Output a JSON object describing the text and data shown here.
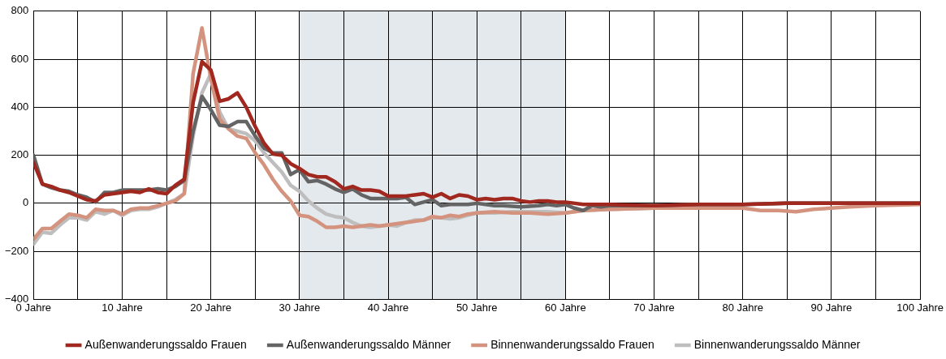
{
  "chart_data": {
    "type": "line",
    "xlim": [
      0,
      100
    ],
    "ylim": [
      -400,
      800
    ],
    "xticks": [
      {
        "value": 0,
        "label": "0 Jahre"
      },
      {
        "value": 5,
        "label": null
      },
      {
        "value": 10,
        "label": "10 Jahre"
      },
      {
        "value": 15,
        "label": null
      },
      {
        "value": 20,
        "label": "20 Jahre"
      },
      {
        "value": 25,
        "label": null
      },
      {
        "value": 30,
        "label": "30 Jahre"
      },
      {
        "value": 35,
        "label": null
      },
      {
        "value": 40,
        "label": "40 Jahre"
      },
      {
        "value": 45,
        "label": null
      },
      {
        "value": 50,
        "label": "50 Jahre"
      },
      {
        "value": 55,
        "label": null
      },
      {
        "value": 60,
        "label": "60 Jahre"
      },
      {
        "value": 65,
        "label": null
      },
      {
        "value": 70,
        "label": "70 Jahre"
      },
      {
        "value": 75,
        "label": null
      },
      {
        "value": 80,
        "label": "80 Jahre"
      },
      {
        "value": 85,
        "label": null
      },
      {
        "value": 90,
        "label": "90 Jahre"
      },
      {
        "value": 95,
        "label": null
      },
      {
        "value": 100,
        "label": "100 Jahre"
      }
    ],
    "yticks": [
      {
        "value": -400,
        "label": "−400"
      },
      {
        "value": -200,
        "label": "−200"
      },
      0,
      200,
      400,
      600,
      800
    ],
    "grid": true,
    "legend": "bottom",
    "marker": "none",
    "line_style": "solid",
    "bands": [
      {
        "axis": "x",
        "from": 30,
        "to": 60,
        "color": "#e4e9ee"
      }
    ],
    "series": [
      {
        "name": "Außenwanderungssaldo Frauen",
        "color": "#a0281e",
        "x": [
          0,
          1,
          2,
          3,
          4,
          5,
          6,
          7,
          8,
          9,
          10,
          11,
          12,
          13,
          14,
          15,
          16,
          17,
          18,
          19,
          20,
          21,
          22,
          23,
          24,
          25,
          26,
          27,
          28,
          29,
          30,
          31,
          32,
          33,
          34,
          35,
          36,
          37,
          38,
          39,
          40,
          41,
          42,
          43,
          44,
          45,
          46,
          47,
          48,
          49,
          50,
          51,
          52,
          53,
          54,
          55,
          56,
          57,
          58,
          59,
          60,
          62,
          65,
          70,
          75,
          80,
          85,
          90,
          95,
          100
        ],
        "values": [
          170,
          80,
          70,
          55,
          45,
          30,
          15,
          10,
          35,
          40,
          45,
          50,
          45,
          60,
          45,
          40,
          75,
          100,
          420,
          590,
          555,
          425,
          435,
          460,
          400,
          320,
          250,
          205,
          200,
          165,
          145,
          120,
          110,
          110,
          90,
          60,
          70,
          55,
          55,
          50,
          30,
          30,
          30,
          35,
          40,
          25,
          40,
          20,
          35,
          30,
          15,
          20,
          15,
          20,
          20,
          10,
          5,
          10,
          10,
          5,
          5,
          -5,
          -5,
          -10,
          -5,
          -5,
          0,
          0,
          0,
          0
        ]
      },
      {
        "name": "Außenwanderungssaldo Männer",
        "color": "#646464",
        "x": [
          0,
          1,
          2,
          3,
          4,
          5,
          6,
          7,
          8,
          9,
          10,
          11,
          12,
          13,
          14,
          15,
          16,
          17,
          18,
          19,
          20,
          21,
          22,
          23,
          24,
          25,
          26,
          27,
          28,
          29,
          30,
          31,
          32,
          33,
          34,
          35,
          36,
          37,
          38,
          39,
          40,
          41,
          42,
          43,
          44,
          45,
          46,
          47,
          48,
          49,
          50,
          51,
          52,
          53,
          55,
          57,
          58,
          59,
          60,
          61,
          62,
          63,
          64,
          65,
          70,
          75,
          80,
          85,
          90,
          95,
          100
        ],
        "values": [
          200,
          80,
          65,
          55,
          50,
          35,
          25,
          5,
          45,
          45,
          55,
          55,
          55,
          55,
          60,
          55,
          70,
          95,
          300,
          445,
          390,
          325,
          320,
          340,
          340,
          280,
          230,
          210,
          210,
          120,
          140,
          90,
          95,
          80,
          60,
          45,
          60,
          35,
          20,
          20,
          20,
          20,
          25,
          -5,
          5,
          15,
          -10,
          -5,
          -5,
          -5,
          0,
          -5,
          -10,
          -10,
          -15,
          -10,
          -5,
          -10,
          -5,
          -20,
          -30,
          -10,
          -15,
          -10,
          -10,
          -5,
          -5,
          0,
          0,
          0,
          0
        ]
      },
      {
        "name": "Binnenwanderungssaldo Frauen",
        "color": "#d4937e",
        "x": [
          0,
          1,
          2,
          3,
          4,
          5,
          6,
          7,
          8,
          9,
          10,
          11,
          12,
          13,
          14,
          15,
          16,
          17,
          18,
          19,
          20,
          21,
          22,
          23,
          24,
          25,
          26,
          27,
          28,
          29,
          30,
          31,
          32,
          33,
          34,
          35,
          36,
          37,
          38,
          39,
          40,
          41,
          42,
          43,
          44,
          45,
          46,
          47,
          48,
          49,
          50,
          52,
          54,
          56,
          58,
          60,
          62,
          65,
          70,
          75,
          80,
          82,
          84,
          86,
          88,
          90,
          92,
          95,
          100
        ],
        "values": [
          -150,
          -105,
          -105,
          -75,
          -45,
          -50,
          -60,
          -25,
          -30,
          -30,
          -45,
          -25,
          -20,
          -20,
          -10,
          0,
          10,
          40,
          540,
          730,
          520,
          350,
          310,
          280,
          270,
          210,
          160,
          100,
          50,
          10,
          -50,
          -55,
          -75,
          -100,
          -100,
          -95,
          -100,
          -95,
          -90,
          -95,
          -90,
          -85,
          -80,
          -75,
          -70,
          -55,
          -60,
          -50,
          -55,
          -45,
          -40,
          -35,
          -40,
          -40,
          -45,
          -40,
          -30,
          -25,
          -20,
          -20,
          -20,
          -30,
          -30,
          -35,
          -25,
          -20,
          -15,
          -10,
          -5
        ]
      },
      {
        "name": "Binnenwanderungssaldo Männer",
        "color": "#bebebe",
        "x": [
          0,
          1,
          2,
          3,
          4,
          5,
          6,
          7,
          8,
          9,
          10,
          11,
          12,
          13,
          14,
          15,
          16,
          17,
          18,
          19,
          20,
          21,
          22,
          23,
          24,
          25,
          26,
          27,
          28,
          29,
          30,
          31,
          32,
          33,
          34,
          35,
          36,
          37,
          38,
          39,
          40,
          41,
          42,
          43,
          44,
          45,
          46,
          47,
          48,
          49,
          50,
          52,
          54,
          56,
          58,
          60,
          62,
          65,
          70,
          75,
          80,
          85,
          90,
          95,
          100
        ],
        "values": [
          -170,
          -120,
          -125,
          -90,
          -60,
          -60,
          -70,
          -35,
          -45,
          -30,
          -50,
          -30,
          -25,
          -25,
          -15,
          0,
          15,
          40,
          280,
          460,
          540,
          380,
          310,
          300,
          290,
          260,
          210,
          170,
          130,
          75,
          50,
          10,
          -20,
          -45,
          -55,
          -60,
          -80,
          -95,
          -100,
          -95,
          -90,
          -95,
          -80,
          -70,
          -70,
          -60,
          -60,
          -65,
          -60,
          -50,
          -40,
          -40,
          -35,
          -35,
          -35,
          -40,
          -30,
          -25,
          -20,
          -10,
          -5,
          0,
          0,
          0,
          0
        ]
      }
    ]
  }
}
